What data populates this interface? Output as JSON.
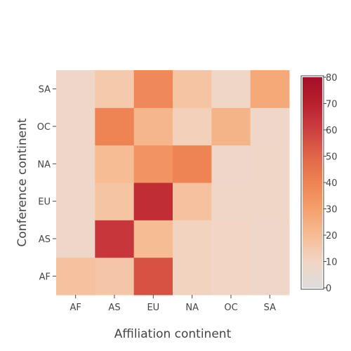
{
  "chart_data": {
    "type": "heatmap",
    "xlabel": "Affiliation continent",
    "ylabel": "Conference continent",
    "x_categories": [
      "AF",
      "AS",
      "EU",
      "NA",
      "OC",
      "SA"
    ],
    "y_categories": [
      "AF",
      "AS",
      "EU",
      "NA",
      "OC",
      "SA"
    ],
    "z": [
      [
        18,
        16,
        55,
        11,
        10,
        8
      ],
      [
        8,
        63,
        20,
        11,
        10,
        8
      ],
      [
        8,
        17,
        66,
        18,
        9,
        9
      ],
      [
        8,
        20,
        34,
        40,
        8,
        9
      ],
      [
        8,
        40,
        22,
        12,
        23,
        8
      ],
      [
        8,
        15,
        38,
        17,
        9,
        27
      ]
    ],
    "colorscale": [
      [
        0,
        "#dddddd"
      ],
      [
        0.125,
        "#f2d5c4"
      ],
      [
        0.25,
        "#f6bc94"
      ],
      [
        0.375,
        "#f4a06c"
      ],
      [
        0.5,
        "#ee8354"
      ],
      [
        0.625,
        "#e06647"
      ],
      [
        0.75,
        "#cc4040"
      ],
      [
        0.875,
        "#b8202e"
      ],
      [
        1,
        "#a50f28"
      ]
    ],
    "zmin": 0,
    "zmax": 80,
    "colorbar": {
      "tickvals": [
        0,
        10,
        20,
        30,
        40,
        50,
        60,
        70,
        80
      ],
      "ticktext": [
        "0",
        "10",
        "20",
        "30",
        "40",
        "50",
        "60",
        "70",
        "80"
      ]
    }
  }
}
